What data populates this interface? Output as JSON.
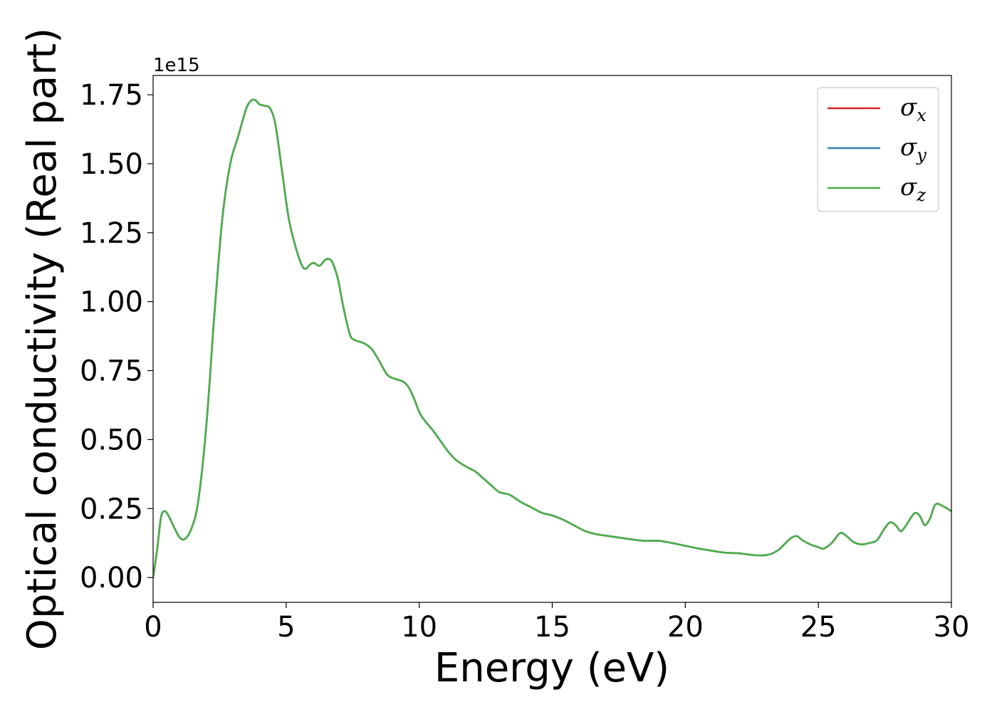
{
  "chart_data": {
    "type": "line",
    "title": "",
    "xlabel": "Energy (eV)",
    "ylabel": "Optical conductivity (Real part)",
    "y_offset_label": "1e15",
    "y_scale": 1000000000000000.0,
    "xlim": [
      0,
      30
    ],
    "ylim": [
      -0.09,
      1.82
    ],
    "x_ticks": [
      0,
      5,
      10,
      15,
      20,
      25,
      30
    ],
    "x_tick_labels": [
      "0",
      "5",
      "10",
      "15",
      "20",
      "25",
      "30"
    ],
    "y_ticks": [
      0.0,
      0.25,
      0.5,
      0.75,
      1.0,
      1.25,
      1.5,
      1.75
    ],
    "y_tick_labels": [
      "0.00",
      "0.25",
      "0.50",
      "0.75",
      "1.00",
      "1.25",
      "1.50",
      "1.75"
    ],
    "grid": false,
    "legend_position": "top-right",
    "x": [
      0,
      0.15,
      0.3,
      0.45,
      0.6,
      0.8,
      1.0,
      1.2,
      1.45,
      1.7,
      2.0,
      2.3,
      2.6,
      2.9,
      3.2,
      3.5,
      3.7,
      3.85,
      4.0,
      4.2,
      4.4,
      4.6,
      4.85,
      5.1,
      5.35,
      5.6,
      5.75,
      5.9,
      6.05,
      6.25,
      6.45,
      6.6,
      6.75,
      6.95,
      7.15,
      7.4,
      7.6,
      7.9,
      8.2,
      8.5,
      8.8,
      9.1,
      9.4,
      9.6,
      9.8,
      10.0,
      10.2,
      10.5,
      10.8,
      11.1,
      11.4,
      11.8,
      12.1,
      12.4,
      12.7,
      13.0,
      13.4,
      13.8,
      14.2,
      14.6,
      15.0,
      15.4,
      15.8,
      16.2,
      16.6,
      17.0,
      17.5,
      18.0,
      18.5,
      19.0,
      19.5,
      20.0,
      20.5,
      21.0,
      21.5,
      22.0,
      22.5,
      22.9,
      23.2,
      23.5,
      23.8,
      24.0,
      24.2,
      24.4,
      24.7,
      25.0,
      25.2,
      25.5,
      25.8,
      26.0,
      26.3,
      26.6,
      26.9,
      27.2,
      27.5,
      27.7,
      27.9,
      28.1,
      28.3,
      28.6,
      28.8,
      29.0,
      29.2,
      29.4,
      29.7,
      30.0
    ],
    "series": [
      {
        "name": "x",
        "symbol": "σ",
        "subscript": "x",
        "color": "#d62728",
        "values": [
          0.0,
          0.1,
          0.22,
          0.24,
          0.22,
          0.18,
          0.145,
          0.14,
          0.18,
          0.28,
          0.55,
          0.95,
          1.3,
          1.5,
          1.6,
          1.7,
          1.73,
          1.73,
          1.715,
          1.71,
          1.7,
          1.64,
          1.47,
          1.3,
          1.2,
          1.13,
          1.12,
          1.135,
          1.14,
          1.13,
          1.15,
          1.155,
          1.14,
          1.08,
          0.98,
          0.88,
          0.86,
          0.85,
          0.83,
          0.785,
          0.735,
          0.72,
          0.71,
          0.69,
          0.65,
          0.6,
          0.57,
          0.535,
          0.495,
          0.455,
          0.425,
          0.4,
          0.385,
          0.36,
          0.335,
          0.31,
          0.3,
          0.275,
          0.255,
          0.235,
          0.225,
          0.21,
          0.19,
          0.17,
          0.158,
          0.152,
          0.145,
          0.138,
          0.133,
          0.133,
          0.125,
          0.115,
          0.105,
          0.097,
          0.09,
          0.088,
          0.082,
          0.08,
          0.085,
          0.1,
          0.128,
          0.145,
          0.15,
          0.135,
          0.12,
          0.11,
          0.105,
          0.125,
          0.16,
          0.155,
          0.13,
          0.12,
          0.125,
          0.135,
          0.18,
          0.2,
          0.19,
          0.168,
          0.19,
          0.232,
          0.225,
          0.19,
          0.215,
          0.265,
          0.258,
          0.24
        ]
      },
      {
        "name": "y",
        "symbol": "σ",
        "subscript": "y",
        "color": "#377eb8",
        "values": [
          0.0,
          0.1,
          0.22,
          0.24,
          0.22,
          0.18,
          0.145,
          0.14,
          0.18,
          0.28,
          0.55,
          0.95,
          1.3,
          1.5,
          1.6,
          1.7,
          1.73,
          1.73,
          1.715,
          1.71,
          1.7,
          1.64,
          1.47,
          1.3,
          1.2,
          1.13,
          1.12,
          1.135,
          1.14,
          1.13,
          1.15,
          1.155,
          1.14,
          1.08,
          0.98,
          0.88,
          0.86,
          0.85,
          0.83,
          0.785,
          0.735,
          0.72,
          0.71,
          0.69,
          0.65,
          0.6,
          0.57,
          0.535,
          0.495,
          0.455,
          0.425,
          0.4,
          0.385,
          0.36,
          0.335,
          0.31,
          0.3,
          0.275,
          0.255,
          0.235,
          0.225,
          0.21,
          0.19,
          0.17,
          0.158,
          0.152,
          0.145,
          0.138,
          0.133,
          0.133,
          0.125,
          0.115,
          0.105,
          0.097,
          0.09,
          0.088,
          0.082,
          0.08,
          0.085,
          0.1,
          0.128,
          0.145,
          0.15,
          0.135,
          0.12,
          0.11,
          0.105,
          0.125,
          0.16,
          0.155,
          0.13,
          0.12,
          0.125,
          0.135,
          0.18,
          0.2,
          0.19,
          0.168,
          0.19,
          0.232,
          0.225,
          0.19,
          0.215,
          0.265,
          0.258,
          0.24
        ]
      },
      {
        "name": "z",
        "symbol": "σ",
        "subscript": "z",
        "color": "#4daf4a",
        "values": [
          0.0,
          0.1,
          0.22,
          0.24,
          0.22,
          0.18,
          0.145,
          0.14,
          0.18,
          0.28,
          0.55,
          0.95,
          1.3,
          1.5,
          1.6,
          1.7,
          1.73,
          1.73,
          1.715,
          1.71,
          1.7,
          1.64,
          1.47,
          1.3,
          1.2,
          1.13,
          1.12,
          1.135,
          1.14,
          1.13,
          1.15,
          1.155,
          1.14,
          1.08,
          0.98,
          0.88,
          0.86,
          0.85,
          0.83,
          0.785,
          0.735,
          0.72,
          0.71,
          0.69,
          0.65,
          0.6,
          0.57,
          0.535,
          0.495,
          0.455,
          0.425,
          0.4,
          0.385,
          0.36,
          0.335,
          0.31,
          0.3,
          0.275,
          0.255,
          0.235,
          0.225,
          0.21,
          0.19,
          0.17,
          0.158,
          0.152,
          0.145,
          0.138,
          0.133,
          0.133,
          0.125,
          0.115,
          0.105,
          0.097,
          0.09,
          0.088,
          0.082,
          0.08,
          0.085,
          0.1,
          0.128,
          0.145,
          0.15,
          0.135,
          0.12,
          0.11,
          0.105,
          0.125,
          0.16,
          0.155,
          0.13,
          0.12,
          0.125,
          0.135,
          0.18,
          0.2,
          0.19,
          0.168,
          0.19,
          0.232,
          0.225,
          0.19,
          0.215,
          0.265,
          0.258,
          0.24
        ]
      }
    ]
  }
}
